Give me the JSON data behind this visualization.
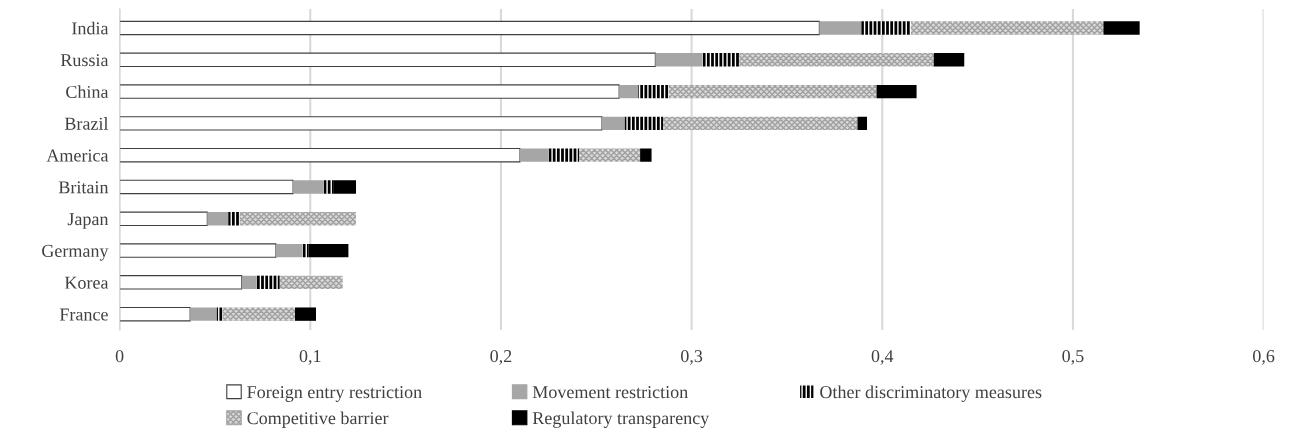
{
  "chart_data": {
    "type": "bar",
    "orientation": "horizontal",
    "stacked": true,
    "categories": [
      "India",
      "Russia",
      "China",
      "Brazil",
      "America",
      "Britain",
      "Japan",
      "Germany",
      "Korea",
      "France"
    ],
    "series": [
      {
        "name": "Foreign entry restriction",
        "color": "#ffffff",
        "values": [
          0.367,
          0.281,
          0.262,
          0.253,
          0.21,
          0.091,
          0.046,
          0.082,
          0.064,
          0.037
        ]
      },
      {
        "name": "Movement restriction",
        "color": "#a6a6a6",
        "values": [
          0.022,
          0.024,
          0.01,
          0.012,
          0.015,
          0.016,
          0.011,
          0.014,
          0.008,
          0.014
        ]
      },
      {
        "name": "Other discriminatory measures",
        "color": "#000000",
        "values": [
          0.026,
          0.02,
          0.016,
          0.02,
          0.016,
          0.005,
          0.006,
          0.003,
          0.012,
          0.003
        ]
      },
      {
        "name": "Competitive barrier",
        "color": "#d9d9d9",
        "values": [
          0.101,
          0.102,
          0.109,
          0.102,
          0.032,
          null,
          0.061,
          null,
          0.033,
          0.038
        ]
      },
      {
        "name": "Regulatory transparency",
        "color": "#000000",
        "values": [
          0.019,
          0.016,
          0.021,
          0.005,
          0.006,
          0.012,
          null,
          0.021,
          null,
          0.011
        ]
      }
    ],
    "xlim": [
      0,
      0.6
    ],
    "xticks": [
      0,
      {
        "value": 0.1,
        "label": "0,1"
      },
      {
        "value": 0.2,
        "label": "0,2"
      },
      {
        "value": 0.3,
        "label": "0,3"
      },
      {
        "value": 0.4,
        "label": "0,4"
      },
      {
        "value": 0.5,
        "label": "0,5"
      },
      {
        "value": 0.6,
        "label": "0,6"
      }
    ],
    "grid": "x",
    "legend": "bottom"
  }
}
